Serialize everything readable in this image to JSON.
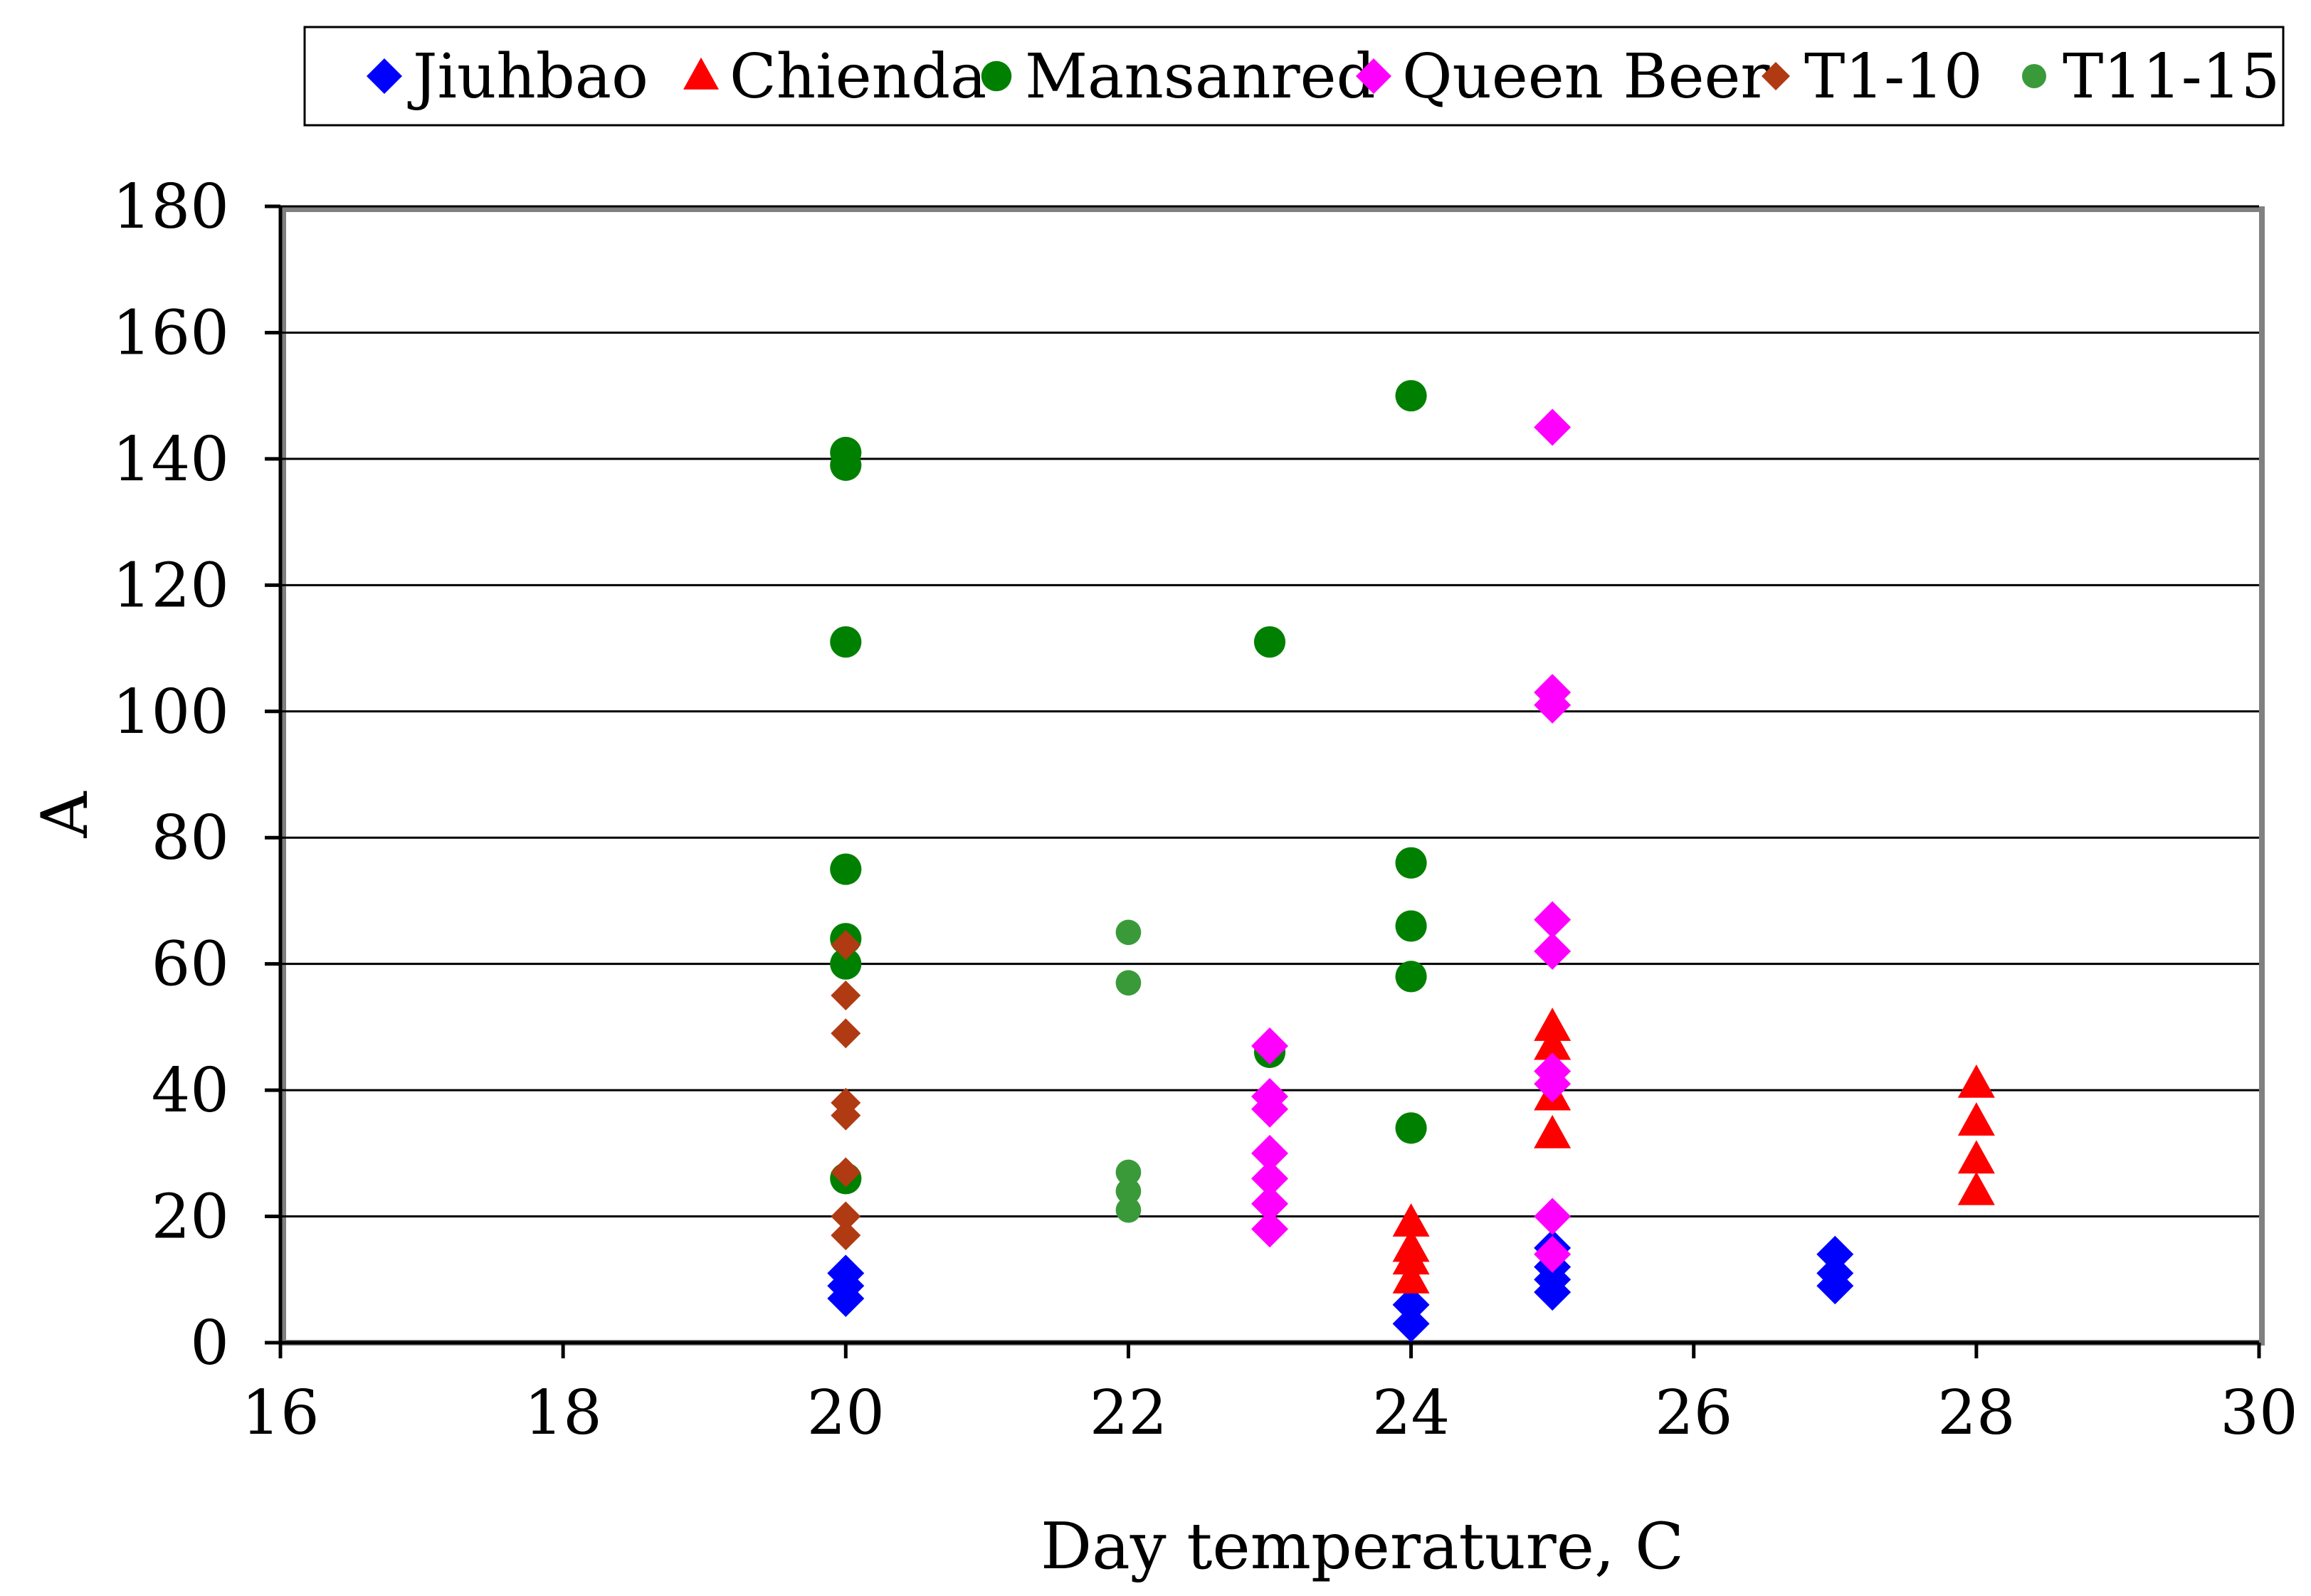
{
  "chart_data": {
    "type": "scatter",
    "title": "",
    "xlabel": "Day temperature, C",
    "ylabel": "A",
    "xlim": [
      16,
      30
    ],
    "ylim": [
      0,
      180
    ],
    "x_ticks": [
      16,
      18,
      20,
      22,
      24,
      26,
      28,
      30
    ],
    "y_ticks": [
      0,
      20,
      40,
      60,
      80,
      100,
      120,
      140,
      160,
      180
    ],
    "grid": "horizontal",
    "legend_position": "top",
    "series": [
      {
        "name": "Jiuhbao",
        "marker": "diamond",
        "color": "#0000FF",
        "points": [
          [
            20,
            7
          ],
          [
            20,
            9
          ],
          [
            20,
            11
          ],
          [
            24,
            3
          ],
          [
            24,
            6
          ],
          [
            25,
            8
          ],
          [
            25,
            10
          ],
          [
            25,
            12
          ],
          [
            25,
            15
          ],
          [
            27,
            9
          ],
          [
            27,
            11
          ],
          [
            27,
            14
          ]
        ]
      },
      {
        "name": "Chienda",
        "marker": "triangle",
        "color": "#FF0000",
        "points": [
          [
            24,
            10
          ],
          [
            24,
            13
          ],
          [
            24,
            15
          ],
          [
            24,
            19
          ],
          [
            25,
            33
          ],
          [
            25,
            39
          ],
          [
            25,
            47
          ],
          [
            25,
            50
          ],
          [
            28,
            24
          ],
          [
            28,
            29
          ],
          [
            28,
            35
          ],
          [
            28,
            41
          ]
        ]
      },
      {
        "name": "Mansanred",
        "marker": "circle",
        "color": "#008000",
        "points": [
          [
            20,
            26
          ],
          [
            20,
            60
          ],
          [
            20,
            64
          ],
          [
            20,
            75
          ],
          [
            20,
            111
          ],
          [
            20,
            139
          ],
          [
            20,
            141
          ],
          [
            23,
            46
          ],
          [
            23,
            111
          ],
          [
            24,
            34
          ],
          [
            24,
            58
          ],
          [
            24,
            66
          ],
          [
            24,
            76
          ],
          [
            24,
            150
          ]
        ]
      },
      {
        "name": "Queen Beer",
        "marker": "diamond",
        "color": "#FF00FF",
        "points": [
          [
            23,
            18
          ],
          [
            23,
            22
          ],
          [
            23,
            26
          ],
          [
            23,
            30
          ],
          [
            23,
            37
          ],
          [
            23,
            39
          ],
          [
            23,
            47
          ],
          [
            25,
            14
          ],
          [
            25,
            20
          ],
          [
            25,
            41
          ],
          [
            25,
            43
          ],
          [
            25,
            62
          ],
          [
            25,
            67
          ],
          [
            25,
            101
          ],
          [
            25,
            103
          ],
          [
            25,
            145
          ]
        ]
      },
      {
        "name": "T1-10",
        "marker": "diamond",
        "color": "#B03A12",
        "points": [
          [
            20,
            17
          ],
          [
            20,
            20
          ],
          [
            20,
            27
          ],
          [
            20,
            36
          ],
          [
            20,
            38
          ],
          [
            20,
            49
          ],
          [
            20,
            55
          ],
          [
            20,
            63
          ]
        ]
      },
      {
        "name": "T11-15",
        "marker": "circle",
        "color": "#3A9A3A",
        "points": [
          [
            22,
            21
          ],
          [
            22,
            24
          ],
          [
            22,
            27
          ],
          [
            22,
            57
          ],
          [
            22,
            65
          ]
        ]
      }
    ]
  }
}
